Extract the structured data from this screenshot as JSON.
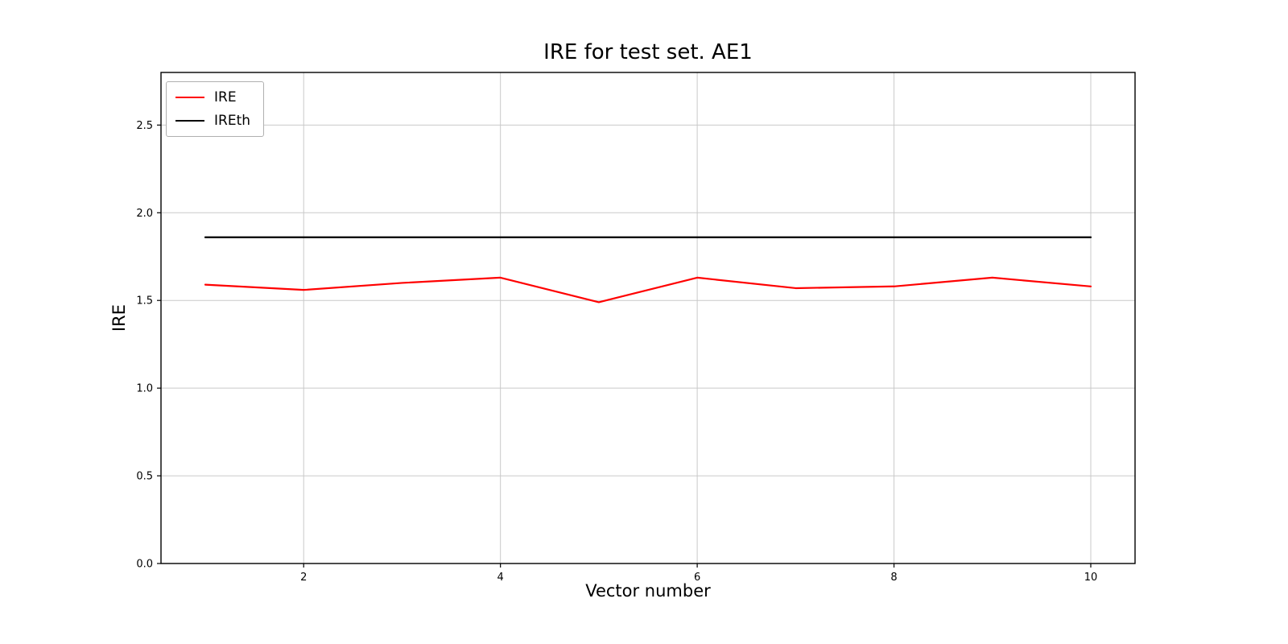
{
  "chart_data": {
    "type": "line",
    "title": "IRE for test set. AE1",
    "xlabel": "Vector number",
    "ylabel": "IRE",
    "x": [
      1,
      2,
      3,
      4,
      5,
      6,
      7,
      8,
      9,
      10
    ],
    "series": [
      {
        "name": "IRE",
        "color": "#ff0000",
        "values": [
          1.59,
          1.56,
          1.6,
          1.63,
          1.49,
          1.63,
          1.57,
          1.58,
          1.63,
          1.58
        ]
      },
      {
        "name": "IREth",
        "color": "#000000",
        "values": [
          1.86,
          1.86,
          1.86,
          1.86,
          1.86,
          1.86,
          1.86,
          1.86,
          1.86,
          1.86
        ]
      }
    ],
    "xlim": [
      0.55,
      10.45
    ],
    "ylim": [
      0,
      2.8
    ],
    "xticks": [
      2,
      4,
      6,
      8,
      10
    ],
    "yticks": [
      0,
      0.5,
      1.0,
      1.5,
      2.0,
      2.5
    ],
    "grid": true,
    "grid_color": "#c9c9c9",
    "axes_color": "#000000",
    "legend_position": "upper left",
    "background": "#ffffff"
  }
}
